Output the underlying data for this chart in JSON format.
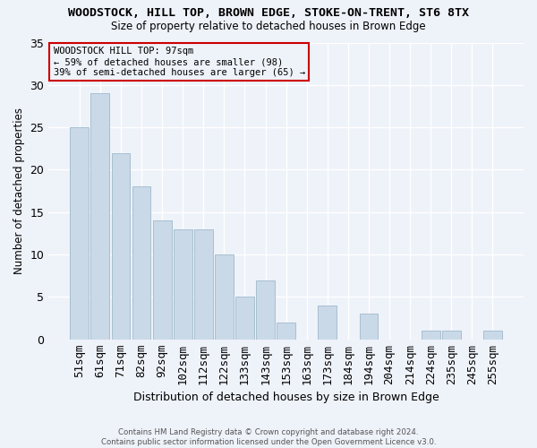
{
  "title": "WOODSTOCK, HILL TOP, BROWN EDGE, STOKE-ON-TRENT, ST6 8TX",
  "subtitle": "Size of property relative to detached houses in Brown Edge",
  "xlabel": "Distribution of detached houses by size in Brown Edge",
  "ylabel": "Number of detached properties",
  "categories": [
    "51sqm",
    "61sqm",
    "71sqm",
    "82sqm",
    "92sqm",
    "102sqm",
    "112sqm",
    "122sqm",
    "133sqm",
    "143sqm",
    "153sqm",
    "163sqm",
    "173sqm",
    "184sqm",
    "194sqm",
    "204sqm",
    "214sqm",
    "224sqm",
    "235sqm",
    "245sqm",
    "255sqm"
  ],
  "values": [
    25,
    29,
    22,
    18,
    14,
    13,
    13,
    10,
    5,
    7,
    2,
    0,
    4,
    0,
    3,
    0,
    0,
    1,
    1,
    0,
    1
  ],
  "bar_color": "#c9d9e8",
  "bar_edge_color": "#a8bfd0",
  "background_color": "#eef2f9",
  "grid_color": "#ffffff",
  "annotation_text": "WOODSTOCK HILL TOP: 97sqm\n← 59% of detached houses are smaller (98)\n39% of semi-detached houses are larger (65) →",
  "annotation_box_edge": "#cc0000",
  "ylim": [
    0,
    35
  ],
  "yticks": [
    0,
    5,
    10,
    15,
    20,
    25,
    30,
    35
  ],
  "footer_line1": "Contains HM Land Registry data © Crown copyright and database right 2024.",
  "footer_line2": "Contains public sector information licensed under the Open Government Licence v3.0."
}
